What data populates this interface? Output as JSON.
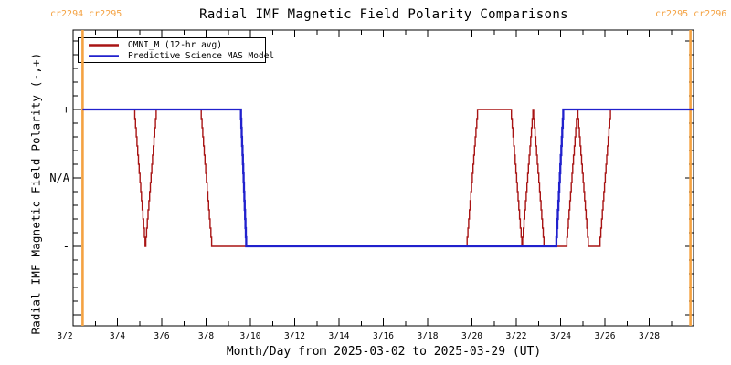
{
  "title": "Radial IMF Magnetic Field Polarity Comparisons",
  "header": {
    "left_rotation_labels": "cr2294 cr2295",
    "right_rotation_labels": "cr2295 cr2296"
  },
  "legend": {
    "items": [
      {
        "label": "OMNI_M (12-hr avg)",
        "color": "#a81414"
      },
      {
        "label": "Predictive Science MAS Model",
        "color": "#2121cd"
      }
    ]
  },
  "axes": {
    "xlabel": "Month/Day from 2025-03-02 to 2025-03-29 (UT)",
    "ylabel": "Radial IMF Magnetic Field Polarity (-,+)",
    "x_tick_labels": [
      "3/2",
      "3/4",
      "3/6",
      "3/8",
      "3/10",
      "3/12",
      "3/14",
      "3/16",
      "3/18",
      "3/20",
      "3/22",
      "3/24",
      "3/26",
      "3/28"
    ],
    "y_ticks": [
      {
        "label": "+",
        "value": 1
      },
      {
        "label": "N/A",
        "value": 0
      },
      {
        "label": "-",
        "value": -1
      }
    ]
  },
  "chart_data": {
    "type": "line",
    "title": "Radial IMF Magnetic Field Polarity Comparisons",
    "xlabel": "Month/Day from 2025-03-02 to 2025-03-29 (UT)",
    "ylabel": "Radial IMF Magnetic Field Polarity (-,+)",
    "x_unit": "days since 2025-03-02 00:00 UT",
    "xlim": [
      0,
      28
    ],
    "ylim": [
      -2.16,
      2.16
    ],
    "grid": false,
    "legend_position": "top-left-inside",
    "polarity_levels": {
      "plus": 1,
      "na": 0,
      "minus": -1
    },
    "series": [
      {
        "name": "OMNI_M (12-hr avg)",
        "color": "#a81414",
        "marker": "plus",
        "line_extends": [
          0.43,
          28
        ],
        "points": [
          [
            0.75,
            1
          ],
          [
            1.25,
            1
          ],
          [
            1.75,
            1
          ],
          [
            2.25,
            1
          ],
          [
            2.75,
            1
          ],
          [
            3.25,
            -1
          ],
          [
            3.75,
            1
          ],
          [
            4.25,
            1
          ],
          [
            4.75,
            1
          ],
          [
            5.25,
            1
          ],
          [
            5.75,
            1
          ],
          [
            6.25,
            -1
          ],
          [
            6.75,
            -1
          ],
          [
            7.25,
            -1
          ],
          [
            7.75,
            -1
          ],
          [
            8.25,
            -1
          ],
          [
            8.75,
            -1
          ],
          [
            9.25,
            -1
          ],
          [
            9.75,
            -1
          ],
          [
            10.25,
            -1
          ],
          [
            10.75,
            -1
          ],
          [
            11.25,
            -1
          ],
          [
            11.75,
            -1
          ],
          [
            12.25,
            -1
          ],
          [
            12.75,
            -1
          ],
          [
            13.25,
            -1
          ],
          [
            13.75,
            -1
          ],
          [
            14.25,
            -1
          ],
          [
            14.75,
            -1
          ],
          [
            15.25,
            -1
          ],
          [
            15.75,
            -1
          ],
          [
            16.25,
            -1
          ],
          [
            16.75,
            -1
          ],
          [
            17.25,
            -1
          ],
          [
            17.75,
            -1
          ],
          [
            18.25,
            1
          ],
          [
            18.75,
            1
          ],
          [
            19.25,
            1
          ],
          [
            19.75,
            1
          ],
          [
            20.25,
            -1
          ],
          [
            20.75,
            1
          ],
          [
            21.25,
            -1
          ],
          [
            21.75,
            -1
          ],
          [
            22.25,
            -1
          ],
          [
            22.75,
            1
          ],
          [
            23.25,
            -1
          ],
          [
            23.75,
            -1
          ],
          [
            24.25,
            1
          ],
          [
            24.75,
            1
          ],
          [
            25.25,
            1
          ],
          [
            25.75,
            1
          ],
          [
            26.25,
            1
          ],
          [
            26.75,
            1
          ],
          [
            27.25,
            1
          ],
          [
            27.75,
            1
          ]
        ]
      },
      {
        "name": "Predictive Science MAS Model",
        "color": "#2121cd",
        "marker": "none",
        "points": [
          [
            0.43,
            1
          ],
          [
            7.56,
            1
          ],
          [
            7.81,
            -1
          ],
          [
            21.79,
            -1
          ],
          [
            22.12,
            1
          ],
          [
            28,
            1
          ]
        ]
      }
    ],
    "carrington_boundaries": {
      "color": "#f4a242",
      "days": [
        0.43,
        27.86
      ],
      "labels": [
        "cr2294 cr2295",
        "cr2295 cr2296"
      ]
    }
  }
}
